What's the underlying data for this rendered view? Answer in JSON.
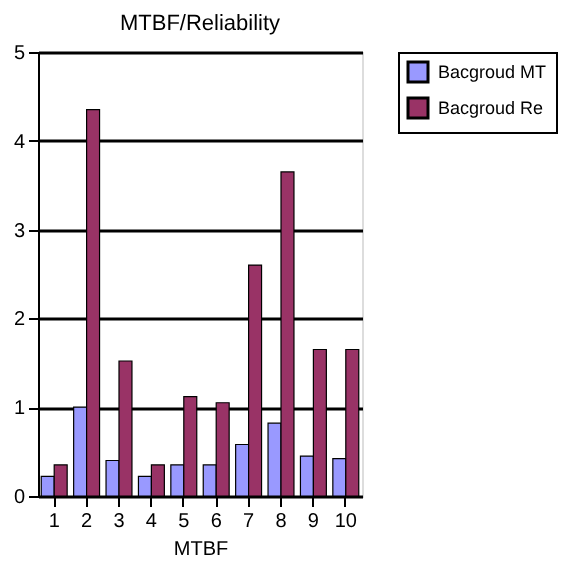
{
  "chart_data": {
    "type": "bar",
    "title": "MTBF/Reliability",
    "xlabel": "MTBF",
    "categories": [
      "1",
      "2",
      "3",
      "4",
      "5",
      "6",
      "7",
      "8",
      "9",
      "10"
    ],
    "series": [
      {
        "name": "Bacgroud MT",
        "color": "#9999ff",
        "values": [
          0.22,
          1.0,
          0.4,
          0.22,
          0.35,
          0.35,
          0.58,
          0.82,
          0.45,
          0.42
        ]
      },
      {
        "name": "Bacgroud Re",
        "color": "#993366",
        "values": [
          0.35,
          4.35,
          1.52,
          0.35,
          1.12,
          1.05,
          2.6,
          3.65,
          1.65,
          1.65
        ]
      }
    ],
    "ylim": [
      0,
      5
    ],
    "yticks": [
      0,
      1,
      2,
      3,
      4,
      5
    ],
    "grid": "y",
    "legend": "right"
  }
}
